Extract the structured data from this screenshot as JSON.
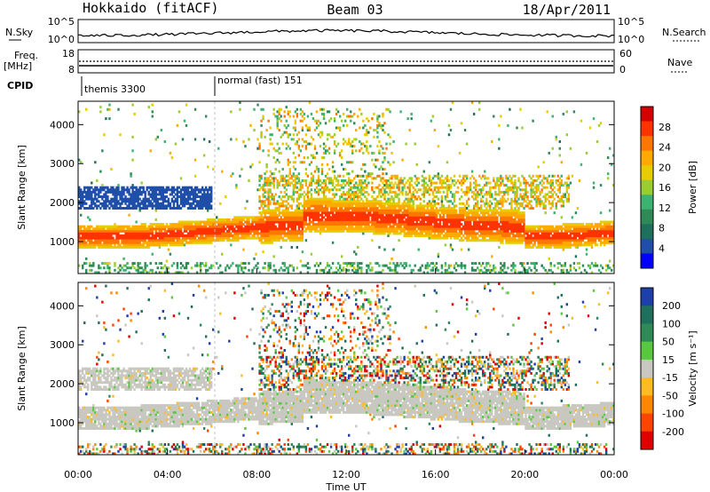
{
  "header": {
    "station": "Hokkaido (fitACF)",
    "beam": "Beam 03",
    "date": "18/Apr/2011"
  },
  "top_panels": {
    "nsky_label": "N.Sky",
    "nsearch_label": "N.Search",
    "noise_ticks_left": [
      "10^5",
      "10^0"
    ],
    "noise_ticks_right": [
      "10^5",
      "10^0"
    ],
    "freq_label_1": "Freq.",
    "freq_label_2": "[MHz]",
    "freq_ticks": [
      "18",
      "8"
    ],
    "nave_label": "Nave",
    "nave_ticks": [
      "60",
      "0"
    ],
    "cpid_label": "CPID",
    "cpid_segments": [
      "themis 3300",
      "normal (fast) 151"
    ]
  },
  "chart_data": [
    {
      "type": "heatmap",
      "panel": "power",
      "ylabel": "Slant Range [km]",
      "yticks": [
        "4000",
        "3000",
        "2000",
        "1000"
      ],
      "ylim": [
        180,
        4600
      ],
      "xlim": [
        0,
        24
      ],
      "colorbar_label": "Power [dB]",
      "colorbar_ticks": [
        "28",
        "24",
        "20",
        "16",
        "12",
        "8",
        "4"
      ],
      "colorbar_colors": [
        "#d50000",
        "#ff3300",
        "#ff7700",
        "#ffaa00",
        "#e6cc00",
        "#9acd32",
        "#3cb371",
        "#2e8b57",
        "#1e6f5c",
        "#1f4fa8",
        "#0000ff"
      ]
    },
    {
      "type": "heatmap",
      "panel": "velocity",
      "ylabel": "Slant Range [km]",
      "yticks": [
        "4000",
        "3000",
        "2000",
        "1000"
      ],
      "ylim": [
        180,
        4600
      ],
      "xlim": [
        0,
        24
      ],
      "colorbar_label": "Velocity [m s⁻¹]",
      "colorbar_ticks": [
        "200",
        "100",
        "50",
        "15",
        "-15",
        "-50",
        "-100",
        "-200"
      ],
      "colorbar_colors": [
        "#1f3fa8",
        "#1e6f5c",
        "#2e8b57",
        "#58c840",
        "#c8c8c0",
        "#ffbb22",
        "#ff8800",
        "#ff4400",
        "#e00000"
      ],
      "xticks": [
        "00:00",
        "04:00",
        "08:00",
        "12:00",
        "16:00",
        "20:00",
        "00:00"
      ],
      "xlabel": "Time UT"
    }
  ]
}
